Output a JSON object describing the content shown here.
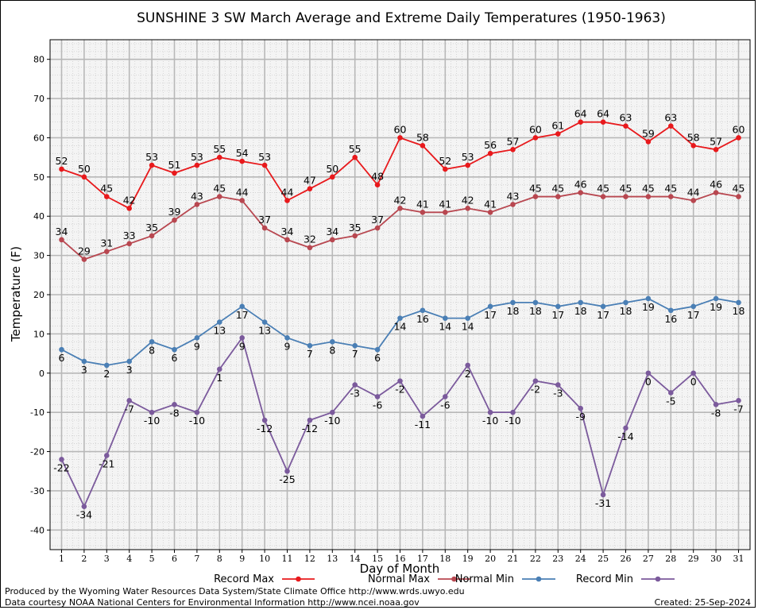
{
  "chart_data": {
    "type": "line",
    "title": "SUNSHINE 3 SW March Average and Extreme Daily Temperatures (1950-1963)",
    "xlabel": "Day of Month",
    "ylabel": "Temperature (F)",
    "x": [
      1,
      2,
      3,
      4,
      5,
      6,
      7,
      8,
      9,
      10,
      11,
      12,
      13,
      14,
      15,
      16,
      17,
      18,
      19,
      20,
      21,
      22,
      23,
      24,
      25,
      26,
      27,
      28,
      29,
      30,
      31
    ],
    "ylim": [
      -45,
      85
    ],
    "yticks": [
      -40,
      -30,
      -20,
      -10,
      0,
      10,
      20,
      30,
      40,
      50,
      60,
      70,
      80
    ],
    "grid": true,
    "legend_position": "bottom",
    "series": [
      {
        "name": "Record Max",
        "color": "#e8191c",
        "label_position": "above",
        "values": [
          52,
          50,
          45,
          42,
          53,
          51,
          53,
          55,
          54,
          53,
          44,
          47,
          50,
          55,
          48,
          60,
          58,
          52,
          53,
          56,
          57,
          60,
          61,
          64,
          64,
          63,
          59,
          63,
          58,
          57,
          60
        ]
      },
      {
        "name": "Normal Max",
        "color": "#b84750",
        "label_position": "above",
        "values": [
          34,
          29,
          31,
          33,
          35,
          39,
          43,
          45,
          44,
          37,
          34,
          32,
          34,
          35,
          37,
          42,
          41,
          41,
          42,
          41,
          43,
          45,
          45,
          46,
          45,
          45,
          45,
          45,
          44,
          46,
          45
        ]
      },
      {
        "name": "Normal Min",
        "color": "#4a7fb5",
        "label_position": "below",
        "values": [
          6,
          3,
          2,
          3,
          8,
          6,
          9,
          13,
          17,
          13,
          9,
          7,
          8,
          7,
          6,
          14,
          16,
          14,
          14,
          17,
          18,
          18,
          17,
          18,
          17,
          18,
          19,
          16,
          17,
          19,
          18
        ]
      },
      {
        "name": "Record Min",
        "color": "#7b5a9c",
        "label_position": "below",
        "values": [
          -22,
          -34,
          -21,
          -7,
          -10,
          -8,
          -10,
          1,
          9,
          -12,
          -25,
          -12,
          -10,
          -3,
          -6,
          -2,
          -11,
          -6,
          2,
          -10,
          -10,
          -2,
          -3,
          -9,
          -31,
          -14,
          0,
          -5,
          0,
          -8,
          -7
        ]
      }
    ]
  },
  "footer": {
    "line1": "Produced by the Wyoming Water Resources Data System/State Climate Office http://www.wrds.uwyo.edu",
    "line2": "Data courtesy NOAA National Centers for Environmental Information http://www.ncei.noaa.gov",
    "created": "Created:  25-Sep-2024"
  }
}
